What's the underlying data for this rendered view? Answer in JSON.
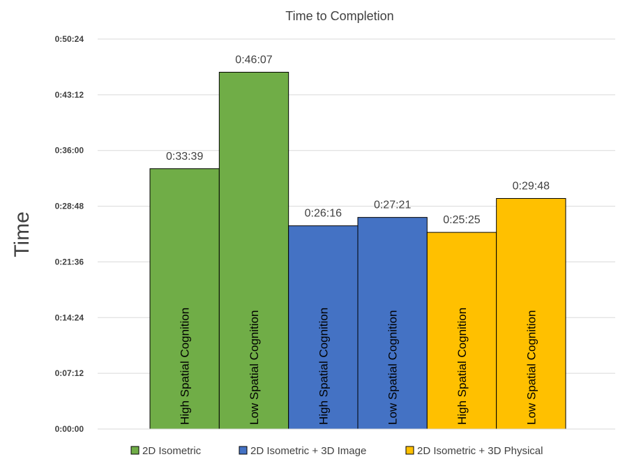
{
  "chart_data": {
    "type": "bar",
    "title": "Time to Completion",
    "ylabel": "Time",
    "xlabel": "",
    "ylim": [
      "0:00:00",
      "0:50:24"
    ],
    "y_ticks": [
      "0:00:00",
      "0:07:12",
      "0:14:24",
      "0:21:36",
      "0:28:48",
      "0:36:00",
      "0:43:12",
      "0:50:24"
    ],
    "grid": true,
    "legend_position": "bottom",
    "bars": [
      {
        "label": "High Spatial Cognition",
        "series": "2D Isometric",
        "value": "0:33:39"
      },
      {
        "label": "Low Spatial Cognition",
        "series": "2D Isometric",
        "value": "0:46:07"
      },
      {
        "label": "High Spatial Cognition",
        "series": "2D Isometric + 3D Image",
        "value": "0:26:16"
      },
      {
        "label": "Low Spatial Cognition",
        "series": "2D Isometric + 3D Image",
        "value": "0:27:21"
      },
      {
        "label": "High Spatial Cognition",
        "series": "2D Isometric + 3D Physical",
        "value": "0:25:25"
      },
      {
        "label": "Low Spatial Cognition",
        "series": "2D Isometric + 3D Physical",
        "value": "0:29:48"
      }
    ],
    "series": [
      {
        "name": "2D Isometric",
        "color": "#70ad47"
      },
      {
        "name": "2D Isometric + 3D Image",
        "color": "#4472c4"
      },
      {
        "name": "2D Isometric + 3D Physical",
        "color": "#ffc000"
      }
    ]
  }
}
